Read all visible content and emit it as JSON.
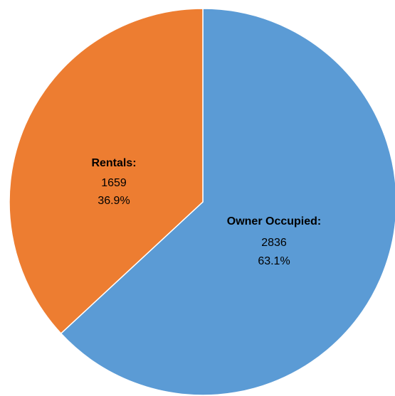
{
  "chart_data": {
    "type": "pie",
    "categories": [
      "Owner Occupied:",
      "Rentals:"
    ],
    "values": [
      2836,
      1659
    ],
    "percent_labels": [
      "63.1%",
      "36.9%"
    ],
    "colors": [
      "#5b9bd5",
      "#ed7d31"
    ]
  }
}
